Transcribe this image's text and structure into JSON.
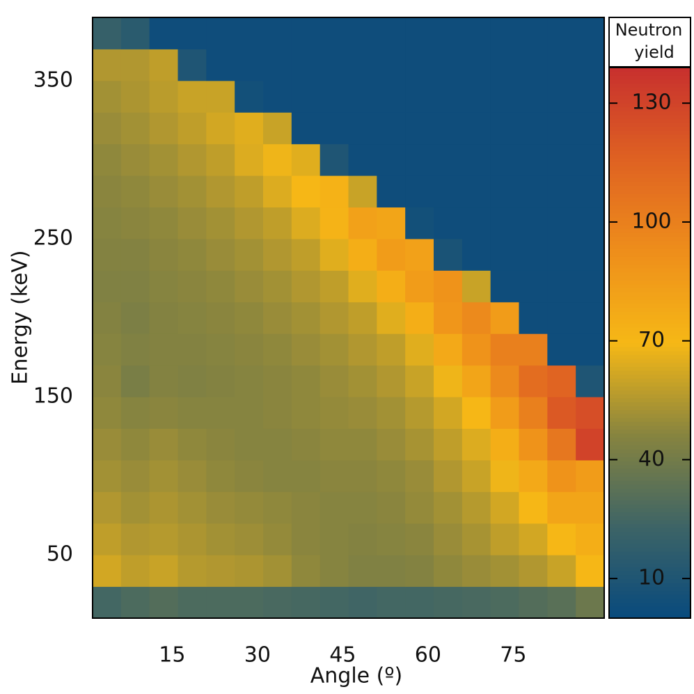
{
  "chart_data": {
    "type": "heatmap",
    "xlabel": "Angle (º)",
    "ylabel": "Energy (keV)",
    "colorbar_label": [
      "Neutron",
      "yield"
    ],
    "x_bins": [
      1,
      6,
      11,
      16,
      21,
      26,
      31,
      36,
      41,
      46,
      51,
      56,
      61,
      66,
      71,
      76,
      81,
      86,
      91
    ],
    "y_bins": [
      10,
      30,
      50,
      70,
      90,
      110,
      130,
      150,
      170,
      190,
      210,
      230,
      250,
      270,
      290,
      310,
      330,
      350,
      370,
      390
    ],
    "xlim": [
      1,
      91
    ],
    "ylim": [
      10,
      390
    ],
    "xticks": [
      15,
      30,
      45,
      60,
      75
    ],
    "yticks": [
      50,
      150,
      250,
      350
    ],
    "clim": [
      0,
      139
    ],
    "cticks": [
      10,
      40,
      70,
      100,
      130
    ],
    "colors": [
      "#084a7e",
      "#3d6466",
      "#87843f",
      "#f6b816",
      "#ee8e1b",
      "#df6222",
      "#c8302e"
    ],
    "z": [
      [
        25,
        28,
        30,
        28,
        28,
        28,
        27,
        26,
        25,
        24,
        25,
        25,
        26,
        27,
        28,
        30,
        32,
        38
      ],
      [
        62,
        58,
        60,
        56,
        55,
        54,
        52,
        48,
        46,
        44,
        44,
        45,
        48,
        50,
        52,
        55,
        60,
        70
      ],
      [
        58,
        55,
        56,
        54,
        52,
        51,
        49,
        47,
        46,
        45,
        46,
        47,
        50,
        53,
        58,
        62,
        70,
        75
      ],
      [
        55,
        52,
        54,
        52,
        50,
        49,
        48,
        47,
        46,
        46,
        47,
        49,
        52,
        56,
        62,
        70,
        80,
        80
      ],
      [
        52,
        50,
        52,
        50,
        48,
        47,
        46,
        46,
        47,
        47,
        48,
        50,
        55,
        60,
        68,
        78,
        90,
        85
      ],
      [
        50,
        48,
        50,
        48,
        47,
        46,
        46,
        47,
        48,
        48,
        50,
        53,
        58,
        64,
        75,
        90,
        105,
        130
      ],
      [
        48,
        46,
        47,
        46,
        46,
        46,
        47,
        48,
        49,
        50,
        52,
        56,
        62,
        70,
        85,
        100,
        120,
        125
      ],
      [
        47,
        42,
        45,
        44,
        45,
        46,
        47,
        48,
        50,
        52,
        55,
        60,
        68,
        80,
        95,
        110,
        115,
        10
      ],
      [
        46,
        44,
        45,
        45,
        46,
        47,
        48,
        50,
        52,
        55,
        58,
        65,
        78,
        90,
        100,
        100,
        3,
        3
      ],
      [
        45,
        43,
        45,
        46,
        47,
        48,
        50,
        52,
        55,
        58,
        65,
        75,
        88,
        95,
        85,
        3,
        3,
        3
      ],
      [
        44,
        44,
        46,
        47,
        48,
        50,
        52,
        55,
        58,
        65,
        75,
        85,
        90,
        60,
        3,
        3,
        3,
        3
      ],
      [
        45,
        45,
        47,
        48,
        50,
        52,
        55,
        58,
        65,
        75,
        85,
        82,
        8,
        3,
        3,
        3,
        3,
        3
      ],
      [
        46,
        47,
        48,
        50,
        52,
        55,
        58,
        64,
        72,
        82,
        80,
        5,
        3,
        3,
        3,
        3,
        3,
        3
      ],
      [
        47,
        48,
        50,
        52,
        55,
        58,
        64,
        70,
        73,
        60,
        3,
        3,
        3,
        3,
        3,
        3,
        3,
        3
      ],
      [
        48,
        50,
        52,
        55,
        58,
        64,
        68,
        65,
        10,
        3,
        3,
        3,
        3,
        3,
        3,
        3,
        3,
        3
      ],
      [
        50,
        52,
        55,
        58,
        62,
        65,
        60,
        3,
        3,
        3,
        3,
        3,
        3,
        3,
        3,
        3,
        3,
        3
      ],
      [
        52,
        54,
        57,
        60,
        60,
        5,
        3,
        3,
        3,
        3,
        3,
        3,
        3,
        3,
        3,
        3,
        3,
        3
      ],
      [
        55,
        55,
        58,
        10,
        3,
        3,
        3,
        3,
        3,
        3,
        3,
        3,
        3,
        3,
        3,
        3,
        3,
        3
      ],
      [
        20,
        15,
        3,
        3,
        3,
        3,
        3,
        3,
        3,
        3,
        3,
        3,
        3,
        3,
        3,
        3,
        3,
        3
      ]
    ]
  }
}
